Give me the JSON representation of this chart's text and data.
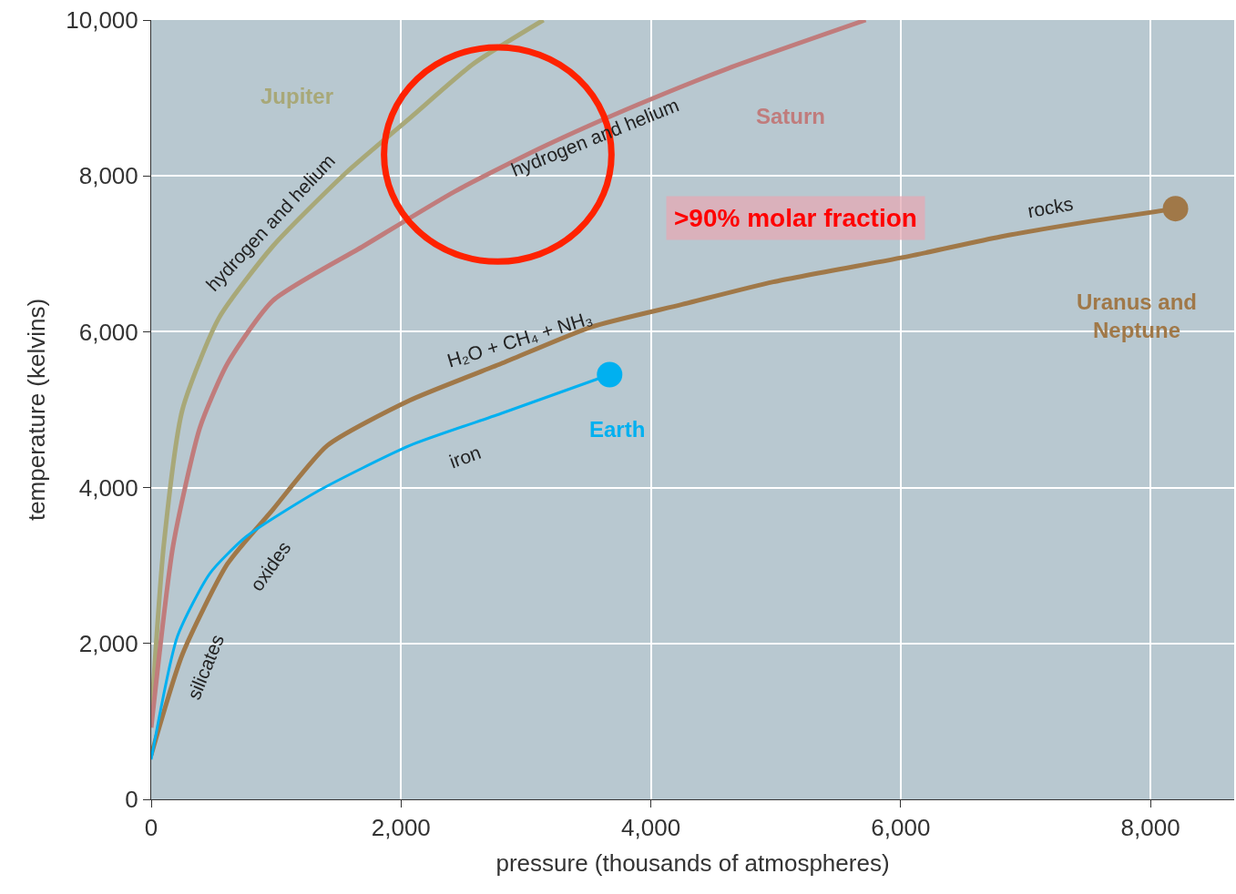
{
  "chart_data": {
    "type": "line",
    "xlabel": "pressure (thousands of atmospheres)",
    "ylabel": "temperature (kelvins)",
    "xlim": [
      0,
      8670
    ],
    "ylim": [
      0,
      10000
    ],
    "xticks": [
      0,
      {
        "value": 2000,
        "label": "2,000"
      },
      {
        "value": 4000,
        "label": "4,000"
      },
      {
        "value": 6000,
        "label": "6,000"
      },
      {
        "value": 8000,
        "label": "8,000"
      }
    ],
    "yticks": [
      0,
      {
        "value": 2000,
        "label": "2,000"
      },
      {
        "value": 4000,
        "label": "4,000"
      },
      {
        "value": 6000,
        "label": "6,000"
      },
      {
        "value": 8000,
        "label": "8,000"
      },
      {
        "value": 10000,
        "label": "10,000"
      }
    ],
    "grid": true,
    "legend": false,
    "series": [
      {
        "name": "Jupiter",
        "color": "#a8a878",
        "marker": "none",
        "x": [
          0,
          100,
          250,
          540,
          975,
          1560,
          2070,
          2580,
          3140
        ],
        "values": [
          1040,
          3250,
          5000,
          6170,
          7100,
          8040,
          8740,
          9440,
          10000
        ]
      },
      {
        "name": "Saturn",
        "color": "#c07c7c",
        "marker": "none",
        "x": [
          0,
          175,
          390,
          610,
          975,
          1700,
          2430,
          3160,
          3890,
          4620,
          5720
        ],
        "values": [
          920,
          3250,
          4770,
          5590,
          6400,
          7100,
          7800,
          8390,
          8910,
          9380,
          10000
        ]
      },
      {
        "name": "Uranus and Neptune",
        "color": "#a07848",
        "x": [
          0,
          250,
          610,
          975,
          1410,
          2070,
          2800,
          3520,
          4250,
          4980,
          6070,
          6800,
          7530,
          8200
        ],
        "values": [
          570,
          1860,
          3020,
          3720,
          4540,
          5120,
          5590,
          6060,
          6350,
          6640,
          6970,
          7220,
          7420,
          7580
        ]
      },
      {
        "name": "Earth",
        "color": "#00b0f0",
        "x": [
          0,
          210,
          470,
          760,
          1340,
          2070,
          2800,
          3670
        ],
        "values": [
          510,
          2090,
          2900,
          3370,
          3960,
          4540,
          4950,
          5450
        ]
      }
    ],
    "annotations": [
      "hydrogen and helium",
      "hydrogen and helium",
      "H₂O + CH₄ + NH₃",
      "rocks",
      "iron",
      "oxides",
      "silicates",
      ">90% molar fraction"
    ]
  }
}
